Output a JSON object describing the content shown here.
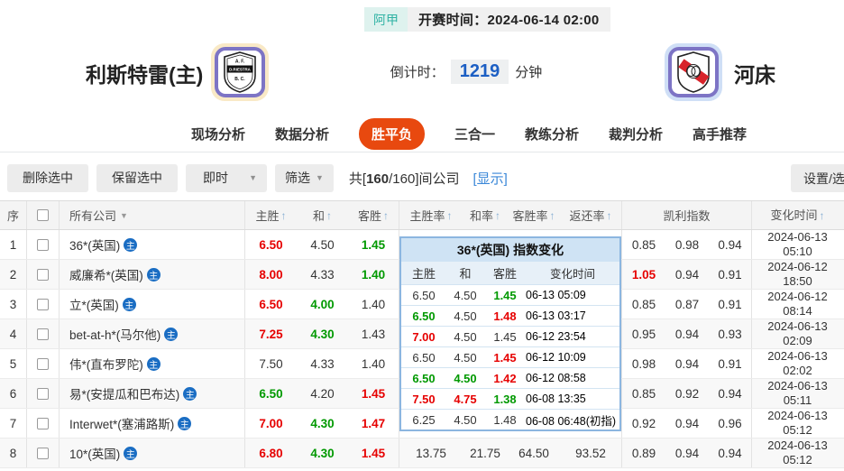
{
  "colors": {
    "accent_tab": "#e8490f",
    "odds_up_red": "#e60000",
    "odds_down_green": "#009900",
    "link_blue": "#3a87d8",
    "countdown_blue": "#1c5fc4",
    "league_teal": "#2fb3a4",
    "home_icon_blue": "#1a6dc3",
    "popup_border_blue": "#8cb6e0"
  },
  "icons": {
    "sort_asc": "↑",
    "dropdown_caret": "▼",
    "home_indicator": "主"
  },
  "match_header": {
    "league": "阿甲",
    "kickoff": "开赛时间：2024-06-14 02:00",
    "home_name": "利斯特雷(主)",
    "away_name": "河床",
    "home_logo": {
      "line1": "A. F.",
      "line2": "D.RIESTRA",
      "line3": "B. C."
    },
    "countdown_label": "倒计时：",
    "countdown_value": "1219",
    "countdown_unit": "分钟"
  },
  "tabs": [
    {
      "label": "现场分析",
      "active": false
    },
    {
      "label": "数据分析",
      "active": false
    },
    {
      "label": "胜平负",
      "active": true
    },
    {
      "label": "三合一",
      "active": false
    },
    {
      "label": "教练分析",
      "active": false
    },
    {
      "label": "裁判分析",
      "active": false
    },
    {
      "label": "高手推荐",
      "active": false
    }
  ],
  "toolbar": {
    "delete_btn": "删除选中",
    "keep_btn": "保留选中",
    "instant_select": "即时",
    "filter_select": "筛选",
    "count_prefix": "共[",
    "count_bold": "160",
    "count_suffix": "/160]间公司",
    "show_link": "[显示]",
    "settings_btn": "设置/选"
  },
  "table": {
    "headers": {
      "index": "序",
      "company": "所有公司",
      "home": "主胜",
      "draw": "和",
      "away": "客胜",
      "home_rate": "主胜率",
      "draw_rate": "和率",
      "away_rate": "客胜率",
      "payout_rate": "返还率",
      "kelly": "凯利指数",
      "change_time": "变化时间"
    },
    "rows": [
      {
        "idx": "1",
        "company": "36*(英国)",
        "odds": [
          [
            "6.50",
            "r"
          ],
          [
            "4.50",
            "k"
          ],
          [
            "1.45",
            "g"
          ]
        ],
        "rates": [
          "",
          "",
          "",
          ""
        ],
        "kelly": [
          [
            "0.85",
            "k"
          ],
          [
            "0.98",
            "k"
          ],
          [
            "0.94",
            "k"
          ]
        ],
        "time": "2024-06-13 05:10"
      },
      {
        "idx": "2",
        "company": "威廉希*(英国)",
        "odds": [
          [
            "8.00",
            "r"
          ],
          [
            "4.33",
            "k"
          ],
          [
            "1.40",
            "g"
          ]
        ],
        "rates": [
          "",
          "",
          "",
          ""
        ],
        "kelly": [
          [
            "1.05",
            "r"
          ],
          [
            "0.94",
            "k"
          ],
          [
            "0.91",
            "k"
          ]
        ],
        "time": "2024-06-12 18:50"
      },
      {
        "idx": "3",
        "company": "立*(英国)",
        "odds": [
          [
            "6.50",
            "r"
          ],
          [
            "4.00",
            "g"
          ],
          [
            "1.40",
            "k"
          ]
        ],
        "rates": [
          "",
          "",
          "",
          ""
        ],
        "kelly": [
          [
            "0.85",
            "k"
          ],
          [
            "0.87",
            "k"
          ],
          [
            "0.91",
            "k"
          ]
        ],
        "time": "2024-06-12 08:14"
      },
      {
        "idx": "4",
        "company": "bet-at-h*(马尔他)",
        "odds": [
          [
            "7.25",
            "r"
          ],
          [
            "4.30",
            "g"
          ],
          [
            "1.43",
            "k"
          ]
        ],
        "rates": [
          "",
          "",
          "",
          ""
        ],
        "kelly": [
          [
            "0.95",
            "k"
          ],
          [
            "0.94",
            "k"
          ],
          [
            "0.93",
            "k"
          ]
        ],
        "time": "2024-06-13 02:09"
      },
      {
        "idx": "5",
        "company": "伟*(直布罗陀)",
        "odds": [
          [
            "7.50",
            "k"
          ],
          [
            "4.33",
            "k"
          ],
          [
            "1.40",
            "k"
          ]
        ],
        "rates": [
          "",
          "",
          "",
          ""
        ],
        "kelly": [
          [
            "0.98",
            "k"
          ],
          [
            "0.94",
            "k"
          ],
          [
            "0.91",
            "k"
          ]
        ],
        "time": "2024-06-13 02:02"
      },
      {
        "idx": "6",
        "company": "易*(安提瓜和巴布达)",
        "odds": [
          [
            "6.50",
            "g"
          ],
          [
            "4.20",
            "k"
          ],
          [
            "1.45",
            "r"
          ]
        ],
        "rates": [
          "",
          "",
          "",
          ""
        ],
        "kelly": [
          [
            "0.85",
            "k"
          ],
          [
            "0.92",
            "k"
          ],
          [
            "0.94",
            "k"
          ]
        ],
        "time": "2024-06-13 05:11"
      },
      {
        "idx": "7",
        "company": "Interwet*(塞浦路斯)",
        "odds": [
          [
            "7.00",
            "r"
          ],
          [
            "4.30",
            "g"
          ],
          [
            "1.47",
            "r"
          ]
        ],
        "rates": [
          "",
          "",
          "",
          ""
        ],
        "kelly": [
          [
            "0.92",
            "k"
          ],
          [
            "0.94",
            "k"
          ],
          [
            "0.96",
            "k"
          ]
        ],
        "time": "2024-06-13 05:12"
      },
      {
        "idx": "8",
        "company": "10*(英国)",
        "odds": [
          [
            "6.80",
            "r"
          ],
          [
            "4.30",
            "g"
          ],
          [
            "1.45",
            "r"
          ]
        ],
        "rates": [
          "13.75",
          "21.75",
          "64.50",
          "93.52"
        ],
        "kelly": [
          [
            "0.89",
            "k"
          ],
          [
            "0.94",
            "k"
          ],
          [
            "0.94",
            "k"
          ]
        ],
        "time": "2024-06-13 05:12"
      }
    ]
  },
  "popup": {
    "title": "36*(英国) 指数变化",
    "headers": [
      "主胜",
      "和",
      "客胜",
      "变化时间"
    ],
    "rows": [
      [
        [
          "6.50",
          "k"
        ],
        [
          "4.50",
          "k"
        ],
        [
          "1.45",
          "g"
        ],
        "06-13 05:09"
      ],
      [
        [
          "6.50",
          "g"
        ],
        [
          "4.50",
          "k"
        ],
        [
          "1.48",
          "r"
        ],
        "06-13 03:17"
      ],
      [
        [
          "7.00",
          "r"
        ],
        [
          "4.50",
          "k"
        ],
        [
          "1.45",
          "k"
        ],
        "06-12 23:54"
      ],
      [
        [
          "6.50",
          "k"
        ],
        [
          "4.50",
          "k"
        ],
        [
          "1.45",
          "r"
        ],
        "06-12 10:09"
      ],
      [
        [
          "6.50",
          "g"
        ],
        [
          "4.50",
          "g"
        ],
        [
          "1.42",
          "r"
        ],
        "06-12 08:58"
      ],
      [
        [
          "7.50",
          "r"
        ],
        [
          "4.75",
          "r"
        ],
        [
          "1.38",
          "g"
        ],
        "06-08 13:35"
      ],
      [
        [
          "6.25",
          "k"
        ],
        [
          "4.50",
          "k"
        ],
        [
          "1.48",
          "k"
        ],
        "06-08 06:48(初指)"
      ]
    ]
  }
}
